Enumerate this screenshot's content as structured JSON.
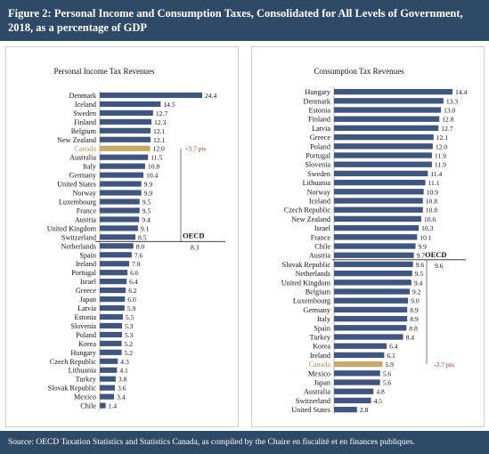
{
  "header": {
    "title_line1": "Figure 2: Personal Income and Consumption Taxes, Consolidated for All Levels of Government,",
    "title_line2": "2018, as a percentage of GDP"
  },
  "footer": {
    "source": "Source: OECD Taxation Statistics and Statistics Canada, as compiled by the Chaire en fiscalité et en finances publiques."
  },
  "colors": {
    "header_bg": "#2e4a66",
    "bar": "#41567c",
    "highlight": "#c4a96b",
    "highlight_text": "#b5955a",
    "annotation": "#c0392b",
    "oecd_line": "#222222"
  },
  "chart_data": [
    {
      "type": "bar",
      "orientation": "horizontal",
      "title": "Personal Income Tax Revenues",
      "categories": [
        "Denmark",
        "Iceland",
        "Sweden",
        "Finland",
        "Belgium",
        "New Zealand",
        "Canada",
        "Australia",
        "Italy",
        "Germany",
        "United States",
        "Norway",
        "Luxembourg",
        "France",
        "Austria",
        "United Kingdom",
        "Switzerland",
        "Netherlands",
        "Spain",
        "Ireland",
        "Portugal",
        "Israel",
        "Greece",
        "Japan",
        "Latvia",
        "Estonia",
        "Slovenia",
        "Poland",
        "Korea",
        "Hungary",
        "Czech Republic",
        "Lithuania",
        "Turkey",
        "Slovak Republic",
        "Mexico",
        "Chile"
      ],
      "values": [
        24.4,
        14.5,
        12.7,
        12.3,
        12.1,
        12.1,
        12.0,
        11.5,
        10.8,
        10.4,
        9.9,
        9.9,
        9.5,
        9.5,
        9.4,
        9.1,
        8.5,
        8.0,
        7.6,
        7.0,
        6.6,
        6.4,
        6.2,
        6.0,
        5.9,
        5.5,
        5.3,
        5.3,
        5.2,
        5.2,
        4.3,
        4.1,
        3.8,
        3.6,
        3.4,
        1.4
      ],
      "value_labels": [
        "24.4",
        "14.5",
        "12.7",
        "12.3",
        "12.1",
        "12.1",
        "12.0",
        "11.5",
        "10.8",
        "10.4",
        "9.9",
        "9.9",
        "9.5",
        "9.5",
        "9.4",
        "9.1",
        "8.5",
        "8.0",
        "7.6",
        "7.0",
        "6.6",
        "6.4",
        "6.2",
        "6.0",
        "5.9",
        "5.5",
        "5.3",
        "5.3",
        "5.2",
        "5.2",
        "4.3",
        "4.1",
        "3.8",
        "3.6",
        "3.4",
        "1.4"
      ],
      "highlight": "Canada",
      "oecd_label": "OECD",
      "oecd_value": 8.3,
      "oecd_value_label": "8.3",
      "annotation": "+3.7 pts",
      "xlim": [
        0,
        24.4
      ]
    },
    {
      "type": "bar",
      "orientation": "horizontal",
      "title": "Consumption Tax Revenues",
      "categories": [
        "Hungary",
        "Denmark",
        "Estonia",
        "Finland",
        "Latvia",
        "Greece",
        "Poland",
        "Portugal",
        "Slovenia",
        "Sweden",
        "Lithuania",
        "Norway",
        "Iceland",
        "Czech Republic",
        "New Zealand",
        "Israel",
        "France",
        "Chile",
        "Austria",
        "Slovak Republic",
        "Netherlands",
        "United Kingdom",
        "Belgium",
        "Luxembourg",
        "Germany",
        "Italy",
        "Spain",
        "Turkey",
        "Korea",
        "Ireland",
        "Canada",
        "Mexico",
        "Japan",
        "Australia",
        "Switzerland",
        "United States"
      ],
      "values": [
        14.4,
        13.3,
        13.0,
        12.8,
        12.7,
        12.1,
        12.0,
        11.9,
        11.9,
        11.4,
        11.1,
        10.9,
        10.8,
        10.8,
        10.6,
        10.3,
        10.1,
        9.9,
        9.7,
        9.6,
        9.5,
        9.4,
        9.2,
        9.0,
        8.9,
        8.9,
        8.8,
        8.4,
        6.4,
        6.1,
        5.9,
        5.6,
        5.6,
        4.8,
        4.5,
        2.8
      ],
      "value_labels": [
        "14.4",
        "13.3",
        "13.0",
        "12.8",
        "12.7",
        "12.1",
        "12.0",
        "11.9",
        "11.9",
        "11.4",
        "11.1",
        "10.9",
        "10.8",
        "10.8",
        "10.6",
        "10.3",
        "10.1",
        "9.9",
        "9.7",
        "9.6",
        "9.5",
        "9.4",
        "9.2",
        "9.0",
        "8.9",
        "8.9",
        "8.8",
        "8.4",
        "6.4",
        "6.1",
        "5.9",
        "5.6",
        "5.6",
        "4.8",
        "4.5",
        "2.8"
      ],
      "highlight": "Canada",
      "oecd_label": "OECD",
      "oecd_value": 9.6,
      "oecd_value_label": "9.6",
      "annotation": "-3.7 pts",
      "xlim": [
        0,
        14.4
      ]
    }
  ]
}
